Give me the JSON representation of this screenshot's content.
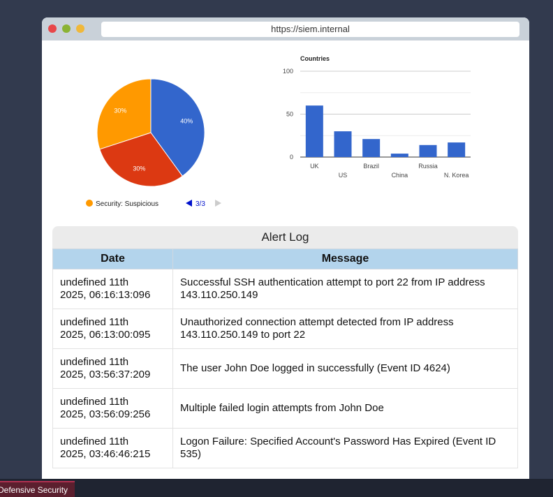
{
  "browser": {
    "url": "https://siem.internal"
  },
  "chart_data": [
    {
      "type": "pie",
      "categories": [
        null,
        null,
        "Security: Suspicious"
      ],
      "values": [
        40,
        30,
        30
      ],
      "value_labels": [
        "40%",
        "30%",
        "30%"
      ],
      "colors": [
        "#3366cc",
        "#dc3912",
        "#ff9900"
      ],
      "legend_item": 2,
      "legend_page": "3/3"
    },
    {
      "type": "bar",
      "title": "Countries",
      "categories": [
        "UK",
        "US",
        "Brazil",
        "China",
        "Russia",
        "N. Korea"
      ],
      "values": [
        60,
        30,
        21,
        4,
        14,
        17
      ],
      "color": "#3366cc",
      "ylim": [
        0,
        100
      ],
      "yticks": [
        0,
        50,
        100
      ],
      "minor_yticks": [
        25,
        75
      ],
      "grid": true
    }
  ],
  "table": {
    "title": "Alert Log",
    "columns": [
      "Date",
      "Message"
    ],
    "rows": [
      [
        "undefined 11th 2025, 06:16:13:096",
        "Successful SSH authentication attempt to port 22 from IP address 143.110.250.149"
      ],
      [
        "undefined 11th 2025, 06:13:00:095",
        "Unauthorized connection attempt detected from IP address 143.110.250.149 to port 22"
      ],
      [
        "undefined 11th 2025, 03:56:37:209",
        "The user John Doe logged in successfully (Event ID 4624)"
      ],
      [
        "undefined 11th 2025, 03:56:09:256",
        "Multiple failed login attempts from John Doe"
      ],
      [
        "undefined 11th 2025, 03:46:46:215",
        "Logon Failure: Specified Account's Password Has Expired (Event ID 535)"
      ]
    ]
  },
  "taskbar": {
    "tab": "Defensive Security"
  }
}
